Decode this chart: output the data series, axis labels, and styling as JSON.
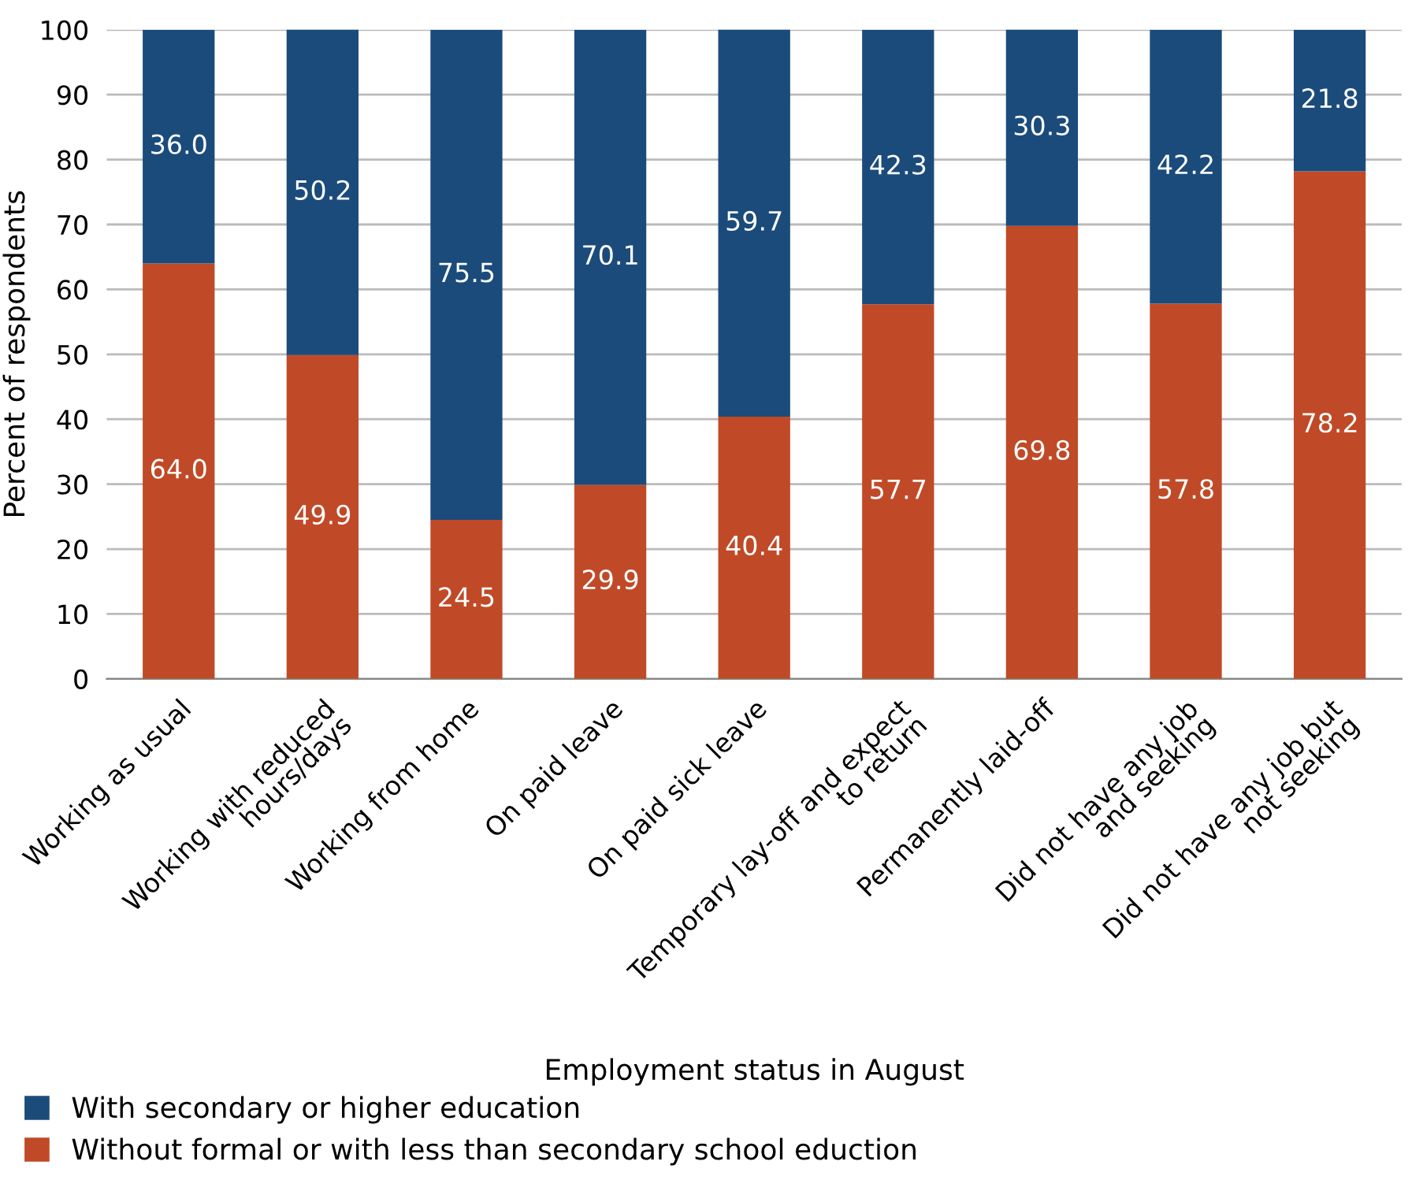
{
  "chart_data": {
    "type": "bar",
    "stacked": true,
    "xlabel": "Employment status in August",
    "ylabel": "Percent of respondents",
    "categories": [
      "Working as usual",
      "Working with reduced\nhours/days",
      "Working from home",
      "On paid leave",
      "On paid sick leave",
      "Temporary lay-off and expect\nto return",
      "Permanently laid-off",
      "Did not have any job\nand seeking",
      "Did not have any job but\nnot seeking"
    ],
    "series": [
      {
        "name": "Without formal or with less than secondary school eduction",
        "color": "#c04a27",
        "values": [
          64.0,
          49.9,
          24.5,
          29.9,
          40.4,
          57.7,
          69.8,
          57.8,
          78.2
        ],
        "value_labels": [
          "64.0",
          "49.9",
          "24.5",
          "29.9",
          "40.4",
          "57.7",
          "69.8",
          "57.8",
          "78.2"
        ]
      },
      {
        "name": "With secondary or higher education",
        "color": "#1b4b7b",
        "values": [
          36.0,
          50.2,
          75.5,
          70.1,
          59.7,
          42.3,
          30.3,
          42.2,
          21.8
        ],
        "value_labels": [
          "36.0",
          "50.2",
          "75.5",
          "70.1",
          "59.7",
          "42.3",
          "30.3",
          "42.2",
          "21.8"
        ]
      }
    ],
    "ylim": [
      0,
      100
    ],
    "yticks": [
      0,
      10,
      20,
      30,
      40,
      50,
      60,
      70,
      80,
      90,
      100
    ],
    "grid": "y",
    "legend": "bottom"
  }
}
